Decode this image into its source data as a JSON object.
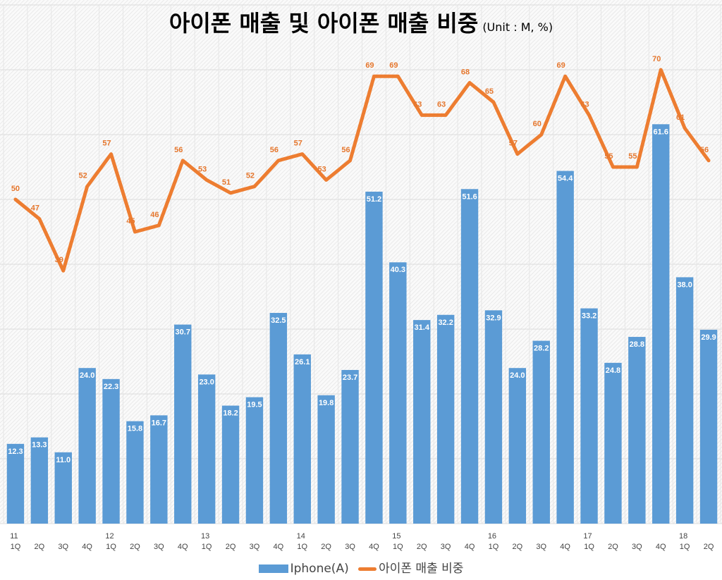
{
  "chart_data": {
    "type": "bar+line",
    "title": "아이폰 매출 및 아이폰 매출 비중",
    "unit": "(Unit : M, %)",
    "categories": [
      "1Q",
      "2Q",
      "3Q",
      "4Q",
      "1Q",
      "2Q",
      "3Q",
      "4Q",
      "1Q",
      "2Q",
      "3Q",
      "4Q",
      "1Q",
      "2Q",
      "3Q",
      "4Q",
      "1Q",
      "2Q",
      "3Q",
      "4Q",
      "1Q",
      "2Q",
      "3Q",
      "4Q",
      "1Q",
      "2Q",
      "3Q",
      "4Q",
      "1Q",
      "2Q"
    ],
    "year_labels": [
      "11",
      "",
      "",
      "",
      "12",
      "",
      "",
      "",
      "13",
      "",
      "",
      "",
      "14",
      "",
      "",
      "",
      "15",
      "",
      "",
      "",
      "16",
      "",
      "",
      "",
      "17",
      "",
      "",
      "",
      "18",
      ""
    ],
    "series": [
      {
        "name": "Iphone(A)",
        "type": "bar",
        "color": "#5b9bd5",
        "values": [
          12.3,
          13.3,
          11.0,
          24.0,
          22.3,
          15.8,
          16.7,
          30.7,
          23.0,
          18.2,
          19.5,
          32.5,
          26.1,
          19.8,
          23.7,
          51.2,
          40.3,
          31.4,
          32.2,
          51.6,
          32.9,
          24.0,
          28.2,
          54.4,
          33.2,
          24.8,
          28.8,
          61.6,
          38.0,
          29.9
        ]
      },
      {
        "name": "아이폰 매출 비중",
        "type": "line",
        "color": "#ed7d31",
        "values": [
          50,
          47,
          39,
          52,
          57,
          45,
          46,
          56,
          53,
          51,
          52,
          56,
          57,
          53,
          56,
          69,
          69,
          63,
          63,
          68,
          65,
          57,
          60,
          69,
          63,
          55,
          55,
          70,
          61,
          56
        ]
      }
    ],
    "ylim": [
      0,
      80
    ],
    "grid": true,
    "legend": "bottom"
  }
}
